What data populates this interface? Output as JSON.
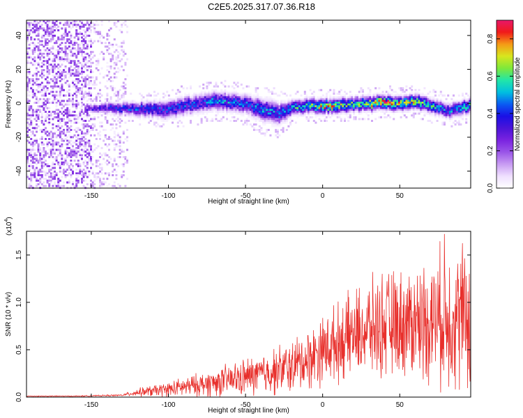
{
  "title": "C2E5.2025.317.07.36.R18",
  "colors": {
    "snr_line": "#e8302c",
    "colormap": [
      "#ffffff",
      "#efe0ff",
      "#c89bf2",
      "#9a55e8",
      "#7a23e0",
      "#4b14d8",
      "#1a10e6",
      "#0a5cf2",
      "#00bfe0",
      "#22e6a8",
      "#7ee83a",
      "#d8e61e",
      "#f59a16",
      "#f01a1a",
      "#e8186a"
    ]
  },
  "chart_data": [
    {
      "type": "heatmap",
      "xlabel": "Height of straight line (km)",
      "ylabel": "Frequency (Hz)",
      "xlim": [
        -192,
        96
      ],
      "ylim": [
        -50,
        49
      ],
      "xticks": [
        -150,
        -100,
        -50,
        0,
        50
      ],
      "xtick_labels": [
        "-150",
        "-100",
        "-50",
        "0",
        "50"
      ],
      "yticks": [
        -40,
        -20,
        0,
        20,
        40
      ],
      "ytick_labels": [
        "-40",
        "-20",
        "0",
        "20",
        "40"
      ],
      "colorbar": {
        "label": "Normalized spectral amplitude",
        "range": [
          0,
          0.9
        ],
        "ticks": [
          0.0,
          0.2,
          0.4,
          0.6,
          0.8
        ],
        "tick_labels": [
          "0.0",
          "0.2",
          "0.4",
          "0.6",
          "0.8"
        ]
      },
      "noise_region_x": [
        -192,
        -127
      ],
      "signal_band": {
        "x": [
          -155,
          -140,
          -120,
          -100,
          -80,
          -70,
          -50,
          -40,
          -30,
          -20,
          -10,
          0,
          10,
          20,
          30,
          40,
          50,
          60,
          70,
          80,
          96
        ],
        "center_hz": [
          -3,
          -2,
          -3,
          -3,
          1,
          2,
          0,
          -3,
          -6,
          -2,
          -1,
          -1,
          -1,
          0,
          0,
          1,
          0,
          2,
          -1,
          -4,
          -1
        ],
        "half_width_hz": [
          2,
          3,
          4,
          5,
          5,
          5,
          5,
          6,
          6,
          4,
          4,
          4,
          4,
          4,
          4,
          4,
          4,
          4,
          4,
          4,
          4
        ],
        "peak_amplitude": [
          0.3,
          0.4,
          0.45,
          0.45,
          0.45,
          0.5,
          0.5,
          0.5,
          0.5,
          0.55,
          0.7,
          0.8,
          0.75,
          0.6,
          0.8,
          0.85,
          0.75,
          0.8,
          0.6,
          0.5,
          0.6
        ]
      }
    },
    {
      "type": "line",
      "xlabel": "Height of straight line (km)",
      "ylabel": "SNR (10 * v/v)",
      "y_multiplier": "(x10^4)",
      "y_multiplier_base": "(x10",
      "y_multiplier_exp": "4",
      "y_multiplier_close": ")",
      "xlim": [
        -192,
        96
      ],
      "ylim": [
        0,
        1.75
      ],
      "xticks": [
        -150,
        -100,
        -50,
        0,
        50
      ],
      "xtick_labels": [
        "-150",
        "-100",
        "-50",
        "0",
        "50"
      ],
      "yticks": [
        0.0,
        0.5,
        1.0,
        1.5
      ],
      "ytick_labels": [
        "0.0",
        "0.5",
        "1.0",
        "1.5"
      ],
      "series": [
        {
          "name": "SNR",
          "trend_x": [
            -192,
            -160,
            -130,
            -120,
            -100,
            -80,
            -60,
            -40,
            -20,
            -10,
            0,
            10,
            20,
            30,
            40,
            50,
            60,
            70,
            80,
            96
          ],
          "trend_y": [
            0.01,
            0.01,
            0.02,
            0.05,
            0.08,
            0.13,
            0.18,
            0.24,
            0.32,
            0.4,
            0.5,
            0.58,
            0.66,
            0.72,
            0.76,
            0.78,
            0.8,
            0.82,
            0.85,
            0.85
          ],
          "spread_y": [
            0.005,
            0.005,
            0.01,
            0.04,
            0.08,
            0.12,
            0.17,
            0.22,
            0.28,
            0.32,
            0.36,
            0.4,
            0.45,
            0.5,
            0.55,
            0.55,
            0.6,
            0.65,
            0.75,
            0.8
          ],
          "peak_x": 79,
          "peak_y": 1.72
        }
      ]
    }
  ]
}
